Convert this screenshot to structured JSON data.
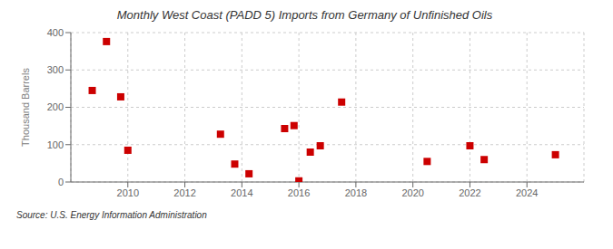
{
  "chart_data": {
    "type": "scatter",
    "title": "Monthly West Coast (PADD 5) Imports from Germany of Unfinished Oils",
    "ylabel": "Thousand Barrels",
    "source": "Source: U.S. Energy Information Administration",
    "x": [
      2008.75,
      2009.25,
      2009.75,
      2010.0,
      2013.25,
      2013.75,
      2014.25,
      2015.5,
      2015.83,
      2016.0,
      2016.4,
      2016.75,
      2017.5,
      2020.5,
      2022.0,
      2022.5,
      2025.0
    ],
    "values": [
      245,
      376,
      228,
      85,
      128,
      48,
      22,
      143,
      151,
      3,
      80,
      97,
      214,
      55,
      97,
      60,
      73
    ],
    "color": "#cc0000",
    "marker": "square",
    "xlim": [
      2008,
      2026
    ],
    "xticks": [
      2010,
      2012,
      2014,
      2016,
      2018,
      2020,
      2022,
      2024
    ],
    "ylim": [
      0,
      400
    ],
    "yticks": [
      0,
      100,
      200,
      300,
      400
    ],
    "grid": true
  }
}
